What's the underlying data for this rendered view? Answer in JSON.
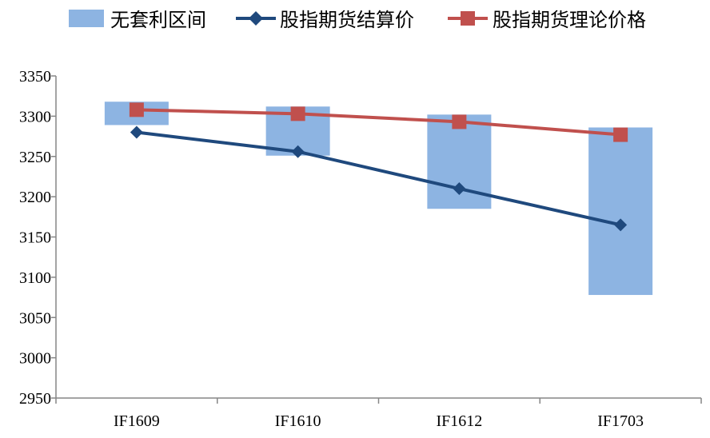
{
  "chart_data": {
    "type": "line",
    "categories": [
      "IF1609",
      "IF1610",
      "IF1612",
      "IF1703"
    ],
    "ylim": [
      2950,
      3350
    ],
    "yticks": [
      2950,
      3000,
      3050,
      3100,
      3150,
      3200,
      3250,
      3300,
      3350
    ],
    "grid": false,
    "legend_position": "top",
    "range_series": {
      "name": "无套利区间",
      "color": "#8DB4E2",
      "low": [
        3289,
        3251,
        3185,
        3078
      ],
      "high": [
        3318,
        3312,
        3302,
        3286
      ]
    },
    "series": [
      {
        "name": "股指期货结算价",
        "color": "#1F497D",
        "marker": "diamond",
        "values": [
          3280,
          3256,
          3210,
          3165
        ]
      },
      {
        "name": "股指期货理论价格",
        "color": "#C0504D",
        "marker": "square",
        "values": [
          3308,
          3303,
          3293,
          3277
        ]
      }
    ]
  }
}
